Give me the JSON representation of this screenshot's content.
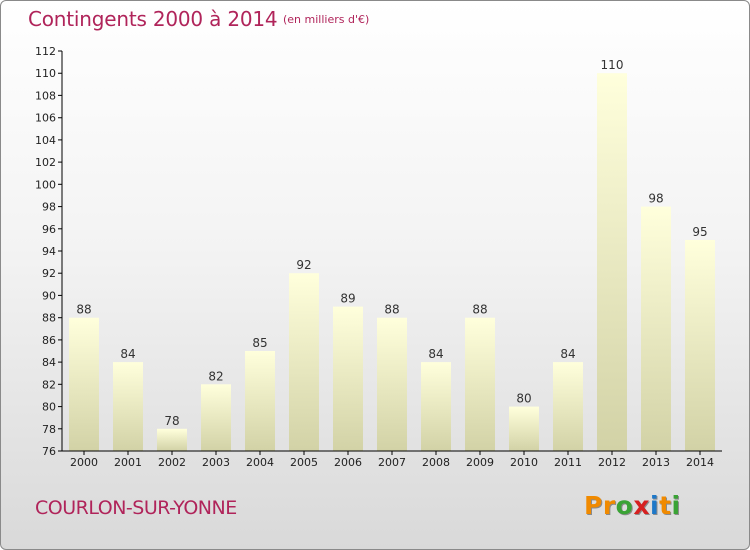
{
  "header": {
    "title": "Contingents 2000 à 2014",
    "subtitle": "(en milliers d'€)"
  },
  "footer": {
    "commune": "COURLON-SUR-YONNE",
    "logo": {
      "letters": [
        "P",
        "r",
        "o",
        "x",
        "i",
        "t",
        "i"
      ],
      "colors": [
        "#f08a00",
        "#f08a00",
        "#3aa335",
        "#d62020",
        "#1e78c8",
        "#f08a00",
        "#3aa335"
      ]
    }
  },
  "colors": {
    "title": "#b0245a",
    "bar_top": "#ffffdc",
    "bar_bottom": "#d2d2a6",
    "axis": "#000000"
  },
  "chart_data": {
    "type": "bar",
    "title": "Contingents 2000 à 2014",
    "subtitle": "(en milliers d'€)",
    "categories": [
      "2000",
      "2001",
      "2002",
      "2003",
      "2004",
      "2005",
      "2006",
      "2007",
      "2008",
      "2009",
      "2010",
      "2011",
      "2012",
      "2013",
      "2014"
    ],
    "values": [
      88,
      84,
      78,
      82,
      85,
      92,
      89,
      88,
      84,
      88,
      80,
      84,
      110,
      98,
      95
    ],
    "ylim": [
      76,
      112
    ],
    "yticks": [
      76,
      78,
      80,
      82,
      84,
      86,
      88,
      90,
      92,
      94,
      96,
      98,
      100,
      102,
      104,
      106,
      108,
      110,
      112
    ],
    "grid": false,
    "data_labels": true
  }
}
